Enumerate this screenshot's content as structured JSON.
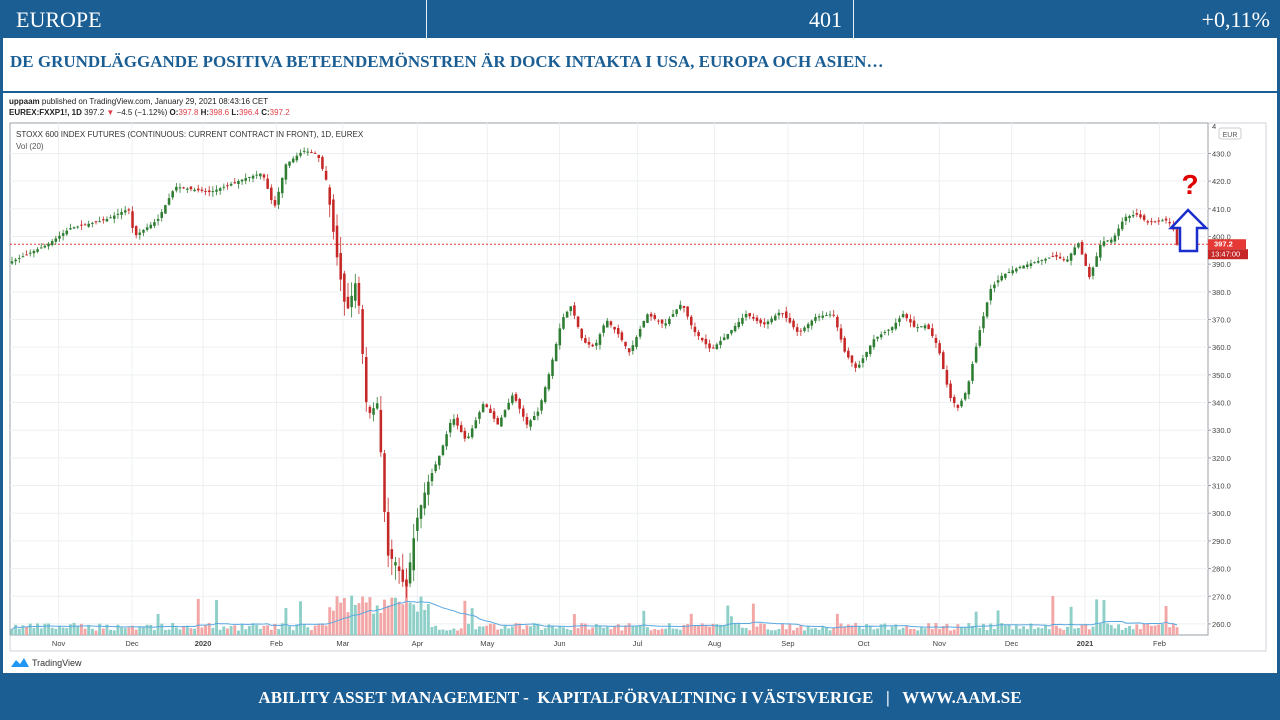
{
  "header": {
    "region": "EUROPE",
    "value": "401",
    "change": "+0,11%"
  },
  "headline": "DE GRUNDLÄGGANDE POSITIVA BETEENDEMÖNSTREN ÄR DOCK INTAKTA I USA, EUROPA OCH ASIEN…",
  "published": {
    "author": "uppaam",
    "text": "published on TradingView.com, January 29, 2021 08:43:16 CET"
  },
  "quote": {
    "symbol": "EUREX:FXXP1!, 1D",
    "price": "397.2",
    "change": "−4.5 (−1.12%)",
    "o_label": "O:",
    "open": "397.8",
    "h_label": "H:",
    "high": "398.6",
    "l_label": "L:",
    "low": "396.4",
    "c_label": "C:",
    "close": "397.2"
  },
  "colors": {
    "brand_blue": "#1b5e94",
    "up": "#26a69a",
    "down": "#ef5350",
    "up_body": "#2e7d32",
    "down_body": "#c62828",
    "vol_up": "#8ecfc8",
    "vol_down": "#f3a6a6",
    "ma_line": "#5aa7e0",
    "price_line": "#e53935"
  },
  "chart_data": {
    "type": "candlestick",
    "title": "STOXX 600 INDEX FUTURES (CONTINUOUS: CURRENT CONTRACT IN FRONT), 1D, EUREX",
    "volume_label": "Vol (20)",
    "currency": "EUR",
    "last_price": "397.2",
    "countdown": "13:47:00",
    "y_ticks": [
      "430.0",
      "420.0",
      "410.0",
      "400.0",
      "390.0",
      "380.0",
      "370.0",
      "360.0",
      "350.0",
      "340.0",
      "330.0",
      "320.0",
      "310.0",
      "300.0",
      "290.0",
      "280.0",
      "270.0",
      "260.0"
    ],
    "y_top_tick": "4",
    "ylim": [
      256,
      441
    ],
    "x_labels": [
      {
        "label": "Nov",
        "t": 0.04
      },
      {
        "label": "Dec",
        "t": 0.103
      },
      {
        "label": "2020",
        "t": 0.164
      },
      {
        "label": "Feb",
        "t": 0.227
      },
      {
        "label": "Mar",
        "t": 0.284
      },
      {
        "label": "Apr",
        "t": 0.348
      },
      {
        "label": "May",
        "t": 0.408
      },
      {
        "label": "Jun",
        "t": 0.47
      },
      {
        "label": "Jul",
        "t": 0.537
      },
      {
        "label": "Aug",
        "t": 0.603
      },
      {
        "label": "Sep",
        "t": 0.666
      },
      {
        "label": "Oct",
        "t": 0.731
      },
      {
        "label": "Nov",
        "t": 0.796
      },
      {
        "label": "Dec",
        "t": 0.858
      },
      {
        "label": "2021",
        "t": 0.921
      },
      {
        "label": "Feb",
        "t": 0.985
      }
    ],
    "close_path": [
      {
        "t": 0.0,
        "v": 391
      },
      {
        "t": 0.03,
        "v": 397
      },
      {
        "t": 0.05,
        "v": 403
      },
      {
        "t": 0.08,
        "v": 406
      },
      {
        "t": 0.1,
        "v": 410
      },
      {
        "t": 0.105,
        "v": 400
      },
      {
        "t": 0.125,
        "v": 406
      },
      {
        "t": 0.14,
        "v": 418
      },
      {
        "t": 0.17,
        "v": 416
      },
      {
        "t": 0.2,
        "v": 421
      },
      {
        "t": 0.215,
        "v": 423
      },
      {
        "t": 0.225,
        "v": 410
      },
      {
        "t": 0.235,
        "v": 426
      },
      {
        "t": 0.25,
        "v": 431
      },
      {
        "t": 0.262,
        "v": 430
      },
      {
        "t": 0.27,
        "v": 420
      },
      {
        "t": 0.278,
        "v": 395
      },
      {
        "t": 0.287,
        "v": 372
      },
      {
        "t": 0.296,
        "v": 385
      },
      {
        "t": 0.305,
        "v": 335
      },
      {
        "t": 0.314,
        "v": 340
      },
      {
        "t": 0.322,
        "v": 285
      },
      {
        "t": 0.33,
        "v": 282
      },
      {
        "t": 0.338,
        "v": 272
      },
      {
        "t": 0.347,
        "v": 297
      },
      {
        "t": 0.356,
        "v": 310
      },
      {
        "t": 0.368,
        "v": 322
      },
      {
        "t": 0.378,
        "v": 335
      },
      {
        "t": 0.39,
        "v": 326
      },
      {
        "t": 0.405,
        "v": 340
      },
      {
        "t": 0.417,
        "v": 332
      },
      {
        "t": 0.43,
        "v": 343
      },
      {
        "t": 0.442,
        "v": 332
      },
      {
        "t": 0.452,
        "v": 337
      },
      {
        "t": 0.462,
        "v": 352
      },
      {
        "t": 0.472,
        "v": 370
      },
      {
        "t": 0.48,
        "v": 375
      },
      {
        "t": 0.49,
        "v": 362
      },
      {
        "t": 0.5,
        "v": 360
      },
      {
        "t": 0.51,
        "v": 370
      },
      {
        "t": 0.52,
        "v": 365
      },
      {
        "t": 0.53,
        "v": 358
      },
      {
        "t": 0.545,
        "v": 372
      },
      {
        "t": 0.56,
        "v": 368
      },
      {
        "t": 0.575,
        "v": 376
      },
      {
        "t": 0.585,
        "v": 366
      },
      {
        "t": 0.6,
        "v": 359
      },
      {
        "t": 0.615,
        "v": 365
      },
      {
        "t": 0.63,
        "v": 372
      },
      {
        "t": 0.645,
        "v": 368
      },
      {
        "t": 0.66,
        "v": 373
      },
      {
        "t": 0.675,
        "v": 365
      },
      {
        "t": 0.69,
        "v": 371
      },
      {
        "t": 0.705,
        "v": 372
      },
      {
        "t": 0.715,
        "v": 358
      },
      {
        "t": 0.725,
        "v": 352
      },
      {
        "t": 0.74,
        "v": 363
      },
      {
        "t": 0.755,
        "v": 367
      },
      {
        "t": 0.765,
        "v": 372
      },
      {
        "t": 0.775,
        "v": 367
      },
      {
        "t": 0.785,
        "v": 368
      },
      {
        "t": 0.795,
        "v": 360
      },
      {
        "t": 0.805,
        "v": 342
      },
      {
        "t": 0.812,
        "v": 338
      },
      {
        "t": 0.82,
        "v": 345
      },
      {
        "t": 0.83,
        "v": 365
      },
      {
        "t": 0.84,
        "v": 381
      },
      {
        "t": 0.85,
        "v": 386
      },
      {
        "t": 0.865,
        "v": 389
      },
      {
        "t": 0.88,
        "v": 391
      },
      {
        "t": 0.895,
        "v": 393
      },
      {
        "t": 0.905,
        "v": 391
      },
      {
        "t": 0.915,
        "v": 398
      },
      {
        "t": 0.925,
        "v": 385
      },
      {
        "t": 0.935,
        "v": 398
      },
      {
        "t": 0.945,
        "v": 399
      },
      {
        "t": 0.955,
        "v": 407
      },
      {
        "t": 0.965,
        "v": 408
      },
      {
        "t": 0.975,
        "v": 405
      },
      {
        "t": 0.99,
        "v": 406
      },
      {
        "t": 0.996,
        "v": 404
      },
      {
        "t": 1.0,
        "v": 397
      }
    ]
  },
  "annotation": {
    "question": "?"
  },
  "tradingview_logo": "TradingView",
  "footer": "ABILITY ASSET MANAGEMENT -  KAPITALFÖRVALTNING I VÄSTSVERIGE   |   WWW.AAM.SE"
}
